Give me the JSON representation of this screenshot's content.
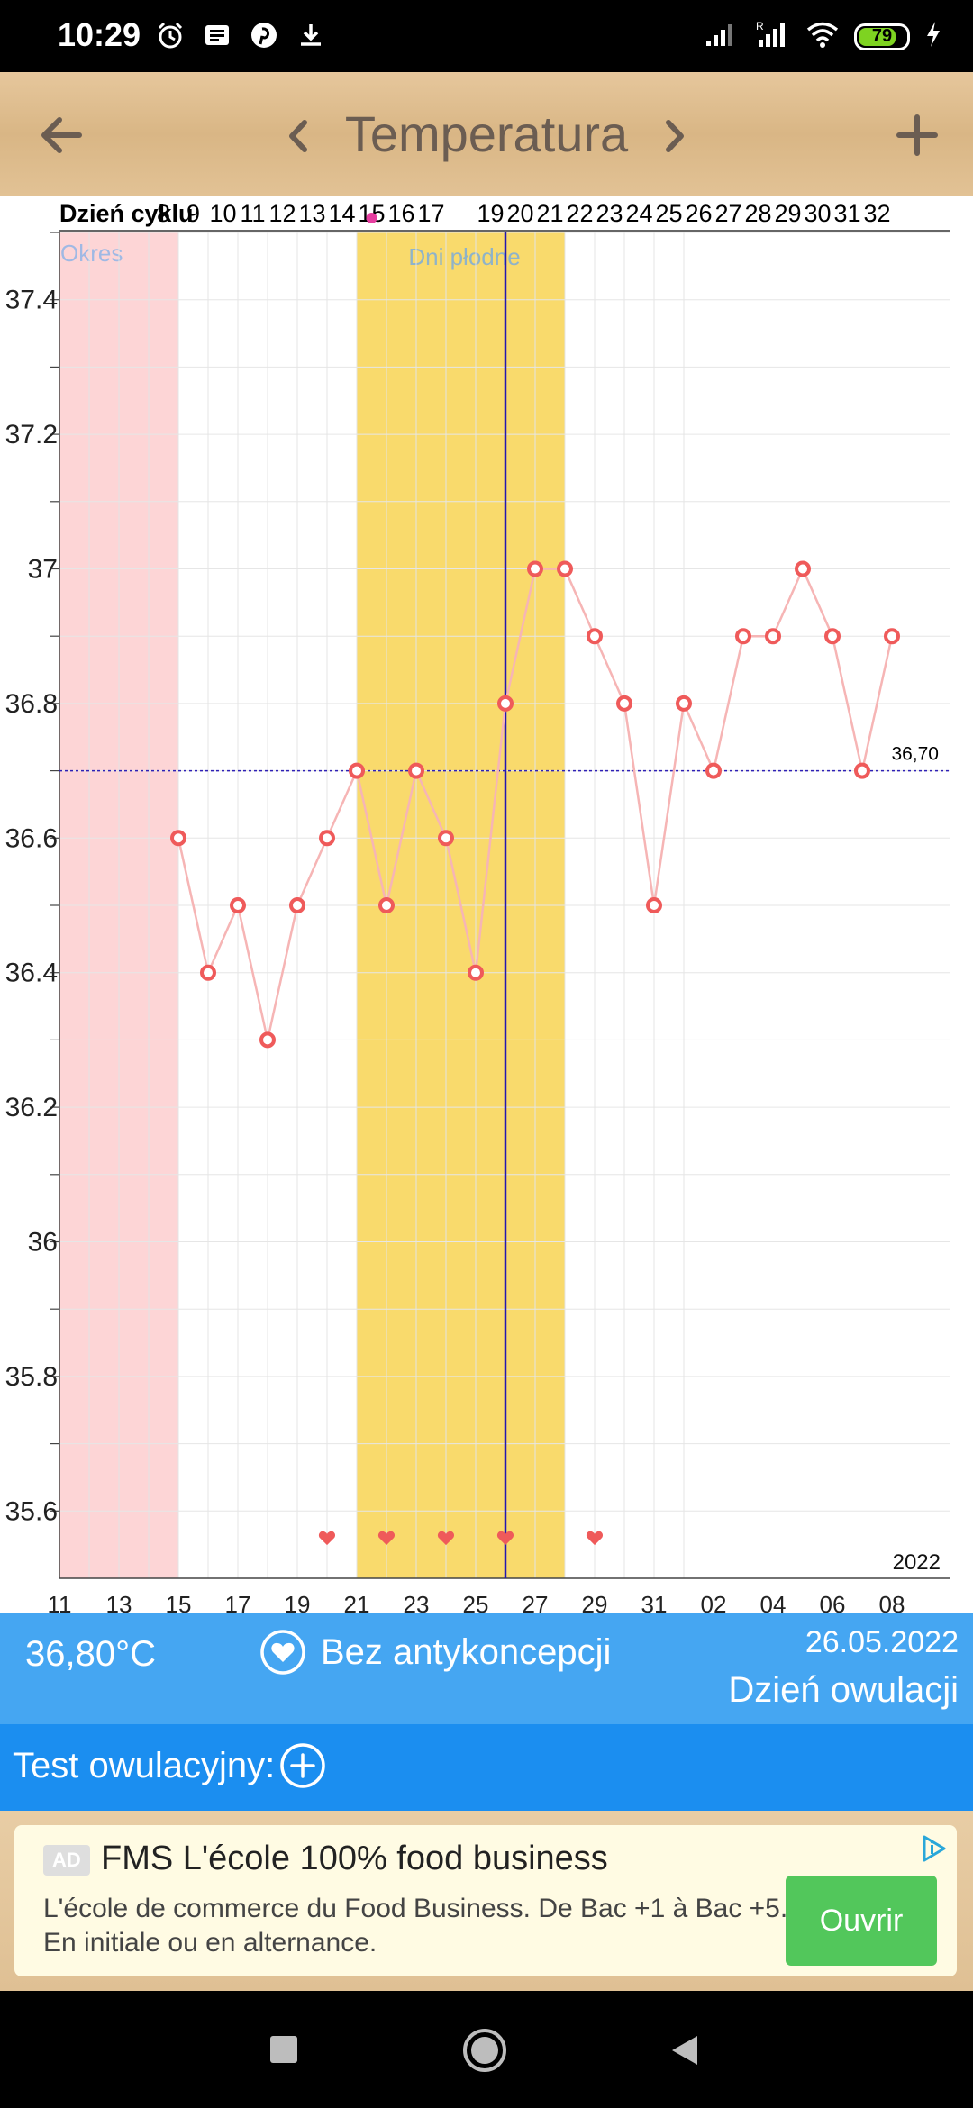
{
  "status_bar": {
    "time": "10:29",
    "left_icons": [
      "alarm-icon",
      "news-icon",
      "pinterest-icon",
      "download-icon"
    ],
    "right_icons": [
      "signal-icon",
      "roaming-signal-icon",
      "wifi-icon",
      "battery-icon",
      "charging-icon"
    ],
    "battery_percent": 79,
    "battery_color": "#7ed321"
  },
  "toolbar": {
    "title": "Temperatura",
    "icons": [
      "back-arrow-icon",
      "chevron-left-icon",
      "chevron-right-icon",
      "plus-icon"
    ]
  },
  "colors": {
    "period_band": "#fdd5d6",
    "fertile_band": "#f9da6c",
    "series_line": "#f6b5b5",
    "marker": "#ef5a5a",
    "ovulation_line": "#2417b0",
    "coverline": "#2e20b5",
    "info_bar": "#45a6f2",
    "test_bar": "#1b8ef0",
    "ad_button": "#52c75b"
  },
  "chart_data": {
    "type": "line",
    "row_label": "Dzień cyklu",
    "cycle_days": [
      "8",
      "9",
      "10",
      "11",
      "12",
      "13",
      "14",
      "15",
      "16",
      "17",
      "",
      "19",
      "20",
      "21",
      "22",
      "23",
      "24",
      "25",
      "26",
      "27",
      "28",
      "29",
      "30",
      "31",
      "32"
    ],
    "x_tick_labels": [
      "11",
      "13",
      "15",
      "17",
      "19",
      "21",
      "23",
      "25",
      "27",
      "29",
      "31",
      "02",
      "04",
      "06",
      "08"
    ],
    "year_label": "2022",
    "y_tick_labels": [
      "37.4",
      "37.2",
      "37",
      "36.8",
      "36.6",
      "36.4",
      "36.2",
      "36",
      "35.8",
      "35.6"
    ],
    "y_ticks": [
      37.4,
      37.2,
      37.0,
      36.8,
      36.6,
      36.4,
      36.2,
      36.0,
      35.8,
      35.6
    ],
    "ylim": [
      35.5,
      37.5
    ],
    "grid": true,
    "series": [
      {
        "start_date": "2022-05-15",
        "values": [
          36.6,
          36.4,
          36.5,
          36.3,
          36.5,
          36.6,
          36.7,
          36.5,
          36.7,
          36.6,
          36.4,
          36.8,
          37.0,
          37.0,
          36.9,
          36.8,
          36.5,
          36.8,
          36.7,
          36.9,
          36.9,
          37.0,
          36.9,
          36.7,
          36.9
        ]
      }
    ],
    "coverline": {
      "value": 36.7,
      "label": "36,70"
    },
    "period_band": {
      "from": "2022-05-11",
      "to": "2022-05-15",
      "label": "Okres"
    },
    "fertile_band": {
      "from": "2022-05-21",
      "to": "2022-05-28",
      "label": "Dni płodne"
    },
    "ovulation_date": "2022-05-26",
    "intercourse_dates": [
      "2022-05-20",
      "2022-05-22",
      "2022-05-24",
      "2022-05-26",
      "2022-05-29"
    ]
  },
  "info_bar": {
    "temperature": "36,80°C",
    "contraception": "Bez antykoncepcji",
    "date": "26.05.2022",
    "day_info": "Dzień owulacji"
  },
  "test_bar": {
    "label": "Test owulacyjny:"
  },
  "ad": {
    "badge": "AD",
    "title": "FMS L'école 100% food business",
    "text": "L'école de commerce du Food Business. De Bac +1 à Bac +5. En initiale ou en alternance.",
    "button": "Ouvrir"
  }
}
